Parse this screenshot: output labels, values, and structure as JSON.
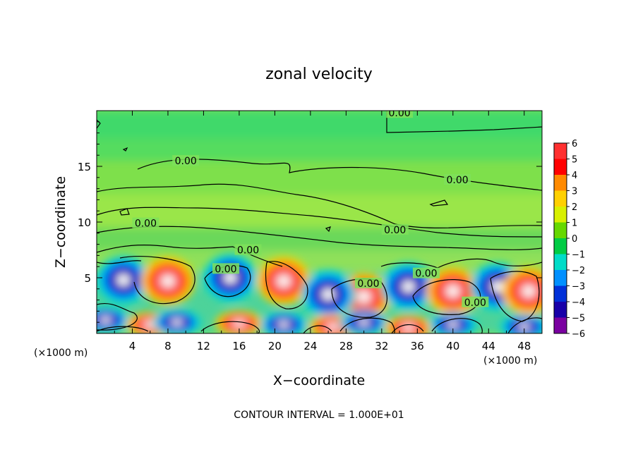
{
  "chart_data": {
    "type": "heatmap",
    "title": "zonal velocity",
    "xlabel": "X−coordinate",
    "ylabel": "Z−coordinate",
    "x_unit_left": "(×1000 m)",
    "x_unit_right": "(×1000 m)",
    "footer": "CONTOUR INTERVAL = 1.000E+01",
    "xlim": [
      0,
      50
    ],
    "ylim": [
      0,
      20
    ],
    "xticks": [
      4,
      8,
      12,
      16,
      20,
      24,
      28,
      32,
      36,
      40,
      44,
      48
    ],
    "yticks": [
      5,
      10,
      15
    ],
    "contour_level_label": "0.00",
    "contour_labels": [
      {
        "x": 34,
        "z": 19.8
      },
      {
        "x": 10,
        "z": 15.5
      },
      {
        "x": 40.5,
        "z": 13.8
      },
      {
        "x": 5.5,
        "z": 9.9
      },
      {
        "x": 33.5,
        "z": 9.3
      },
      {
        "x": 17,
        "z": 7.5
      },
      {
        "x": 14.5,
        "z": 5.8
      },
      {
        "x": 30.5,
        "z": 4.5
      },
      {
        "x": 37,
        "z": 5.4
      },
      {
        "x": 42.5,
        "z": 2.8
      }
    ],
    "colorbar": {
      "levels": [
        6,
        5,
        4,
        3,
        2,
        1,
        0,
        -1,
        -2,
        -3,
        -4,
        -5,
        -6
      ],
      "colors": [
        "#f4a6a6",
        "#ff3030",
        "#ff0000",
        "#ff8a00",
        "#ffd000",
        "#d8f000",
        "#66d800",
        "#00cc44",
        "#00dcc8",
        "#0090ff",
        "#0030d8",
        "#1800a8",
        "#7a00a0"
      ]
    },
    "features": [
      {
        "x": 3,
        "z": 4.8,
        "value": -5
      },
      {
        "x": 8,
        "z": 4.7,
        "value": 4
      },
      {
        "x": 15,
        "z": 5.0,
        "value": -4
      },
      {
        "x": 21,
        "z": 4.7,
        "value": 4
      },
      {
        "x": 30,
        "z": 3.3,
        "value": 4
      },
      {
        "x": 26,
        "z": 3.5,
        "value": -3
      },
      {
        "x": 35,
        "z": 4.2,
        "value": -3
      },
      {
        "x": 40,
        "z": 3.8,
        "value": 4
      },
      {
        "x": 45,
        "z": 4.2,
        "value": -4
      },
      {
        "x": 48.5,
        "z": 3.8,
        "value": 4
      },
      {
        "x": 1,
        "z": 1.2,
        "value": -4
      },
      {
        "x": 6,
        "z": 0.8,
        "value": 4
      },
      {
        "x": 9,
        "z": 1.0,
        "value": -4
      },
      {
        "x": 16,
        "z": 0.9,
        "value": 4
      },
      {
        "x": 21,
        "z": 0.8,
        "value": -4
      },
      {
        "x": 26.5,
        "z": 0.6,
        "value": 4
      },
      {
        "x": 30,
        "z": 1.0,
        "value": -4
      },
      {
        "x": 35,
        "z": 0.5,
        "value": 4
      },
      {
        "x": 40,
        "z": 0.8,
        "value": -4
      },
      {
        "x": 48,
        "z": 0.6,
        "value": -4
      }
    ]
  }
}
